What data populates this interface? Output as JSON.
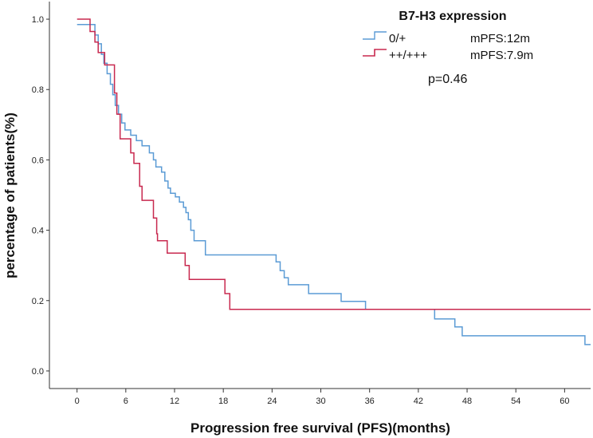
{
  "chart_data": {
    "type": "line",
    "subtype": "kaplan-meier step curves",
    "xlabel": "Progression free survival (PFS)(months)",
    "ylabel": "percentage of patients(%)",
    "xlim": [
      -3.4,
      63.2
    ],
    "ylim": [
      -0.05,
      1.05
    ],
    "xticks": [
      0,
      6,
      12,
      18,
      24,
      30,
      36,
      42,
      48,
      54,
      60
    ],
    "yticks": [
      0.0,
      0.2,
      0.4,
      0.6,
      0.8,
      1.0
    ],
    "ytick_labels": [
      "0.0",
      "0.2",
      "0.4",
      "0.6",
      "0.8",
      "1.0"
    ],
    "legend": {
      "title": "B7-H3 expression",
      "position": "top-right",
      "entries": [
        {
          "label": "0/+",
          "median": "mPFS:12m"
        },
        {
          "label": "++/+++",
          "median": "mPFS:7.9m"
        }
      ]
    },
    "annotation": "p=0.46",
    "series": [
      {
        "name": "0/+",
        "color": "#5b9bd5",
        "points": [
          [
            0,
            0.985
          ],
          [
            2.2,
            0.955
          ],
          [
            2.6,
            0.93
          ],
          [
            3.0,
            0.9
          ],
          [
            3.3,
            0.875
          ],
          [
            3.7,
            0.845
          ],
          [
            4.1,
            0.815
          ],
          [
            4.4,
            0.785
          ],
          [
            4.7,
            0.755
          ],
          [
            5.1,
            0.73
          ],
          [
            5.5,
            0.705
          ],
          [
            5.9,
            0.685
          ],
          [
            6.6,
            0.67
          ],
          [
            7.3,
            0.655
          ],
          [
            8.0,
            0.64
          ],
          [
            8.9,
            0.62
          ],
          [
            9.4,
            0.6
          ],
          [
            9.7,
            0.58
          ],
          [
            10.4,
            0.565
          ],
          [
            10.8,
            0.54
          ],
          [
            11.2,
            0.52
          ],
          [
            11.5,
            0.505
          ],
          [
            12.1,
            0.495
          ],
          [
            12.6,
            0.48
          ],
          [
            13.1,
            0.465
          ],
          [
            13.4,
            0.45
          ],
          [
            13.7,
            0.43
          ],
          [
            14.0,
            0.4
          ],
          [
            14.4,
            0.37
          ],
          [
            15.8,
            0.33
          ],
          [
            24.5,
            0.31
          ],
          [
            25.0,
            0.285
          ],
          [
            25.5,
            0.265
          ],
          [
            26.0,
            0.245
          ],
          [
            28.5,
            0.22
          ],
          [
            32.5,
            0.198
          ],
          [
            35.5,
            0.175
          ],
          [
            44.0,
            0.148
          ],
          [
            46.5,
            0.125
          ],
          [
            47.4,
            0.1
          ],
          [
            62.5,
            0.075
          ],
          [
            63.2,
            0.075
          ]
        ]
      },
      {
        "name": "++/+++",
        "color": "#c8294f",
        "points": [
          [
            0,
            1.0
          ],
          [
            1.6,
            0.965
          ],
          [
            2.2,
            0.935
          ],
          [
            2.6,
            0.905
          ],
          [
            3.4,
            0.87
          ],
          [
            4.6,
            0.79
          ],
          [
            4.9,
            0.73
          ],
          [
            5.3,
            0.66
          ],
          [
            6.6,
            0.62
          ],
          [
            7.0,
            0.59
          ],
          [
            7.7,
            0.525
          ],
          [
            8.0,
            0.485
          ],
          [
            9.4,
            0.435
          ],
          [
            9.8,
            0.39
          ],
          [
            9.9,
            0.37
          ],
          [
            11.1,
            0.335
          ],
          [
            13.3,
            0.3
          ],
          [
            13.8,
            0.26
          ],
          [
            18.2,
            0.22
          ],
          [
            18.8,
            0.175
          ],
          [
            63.2,
            0.175
          ]
        ]
      }
    ]
  }
}
